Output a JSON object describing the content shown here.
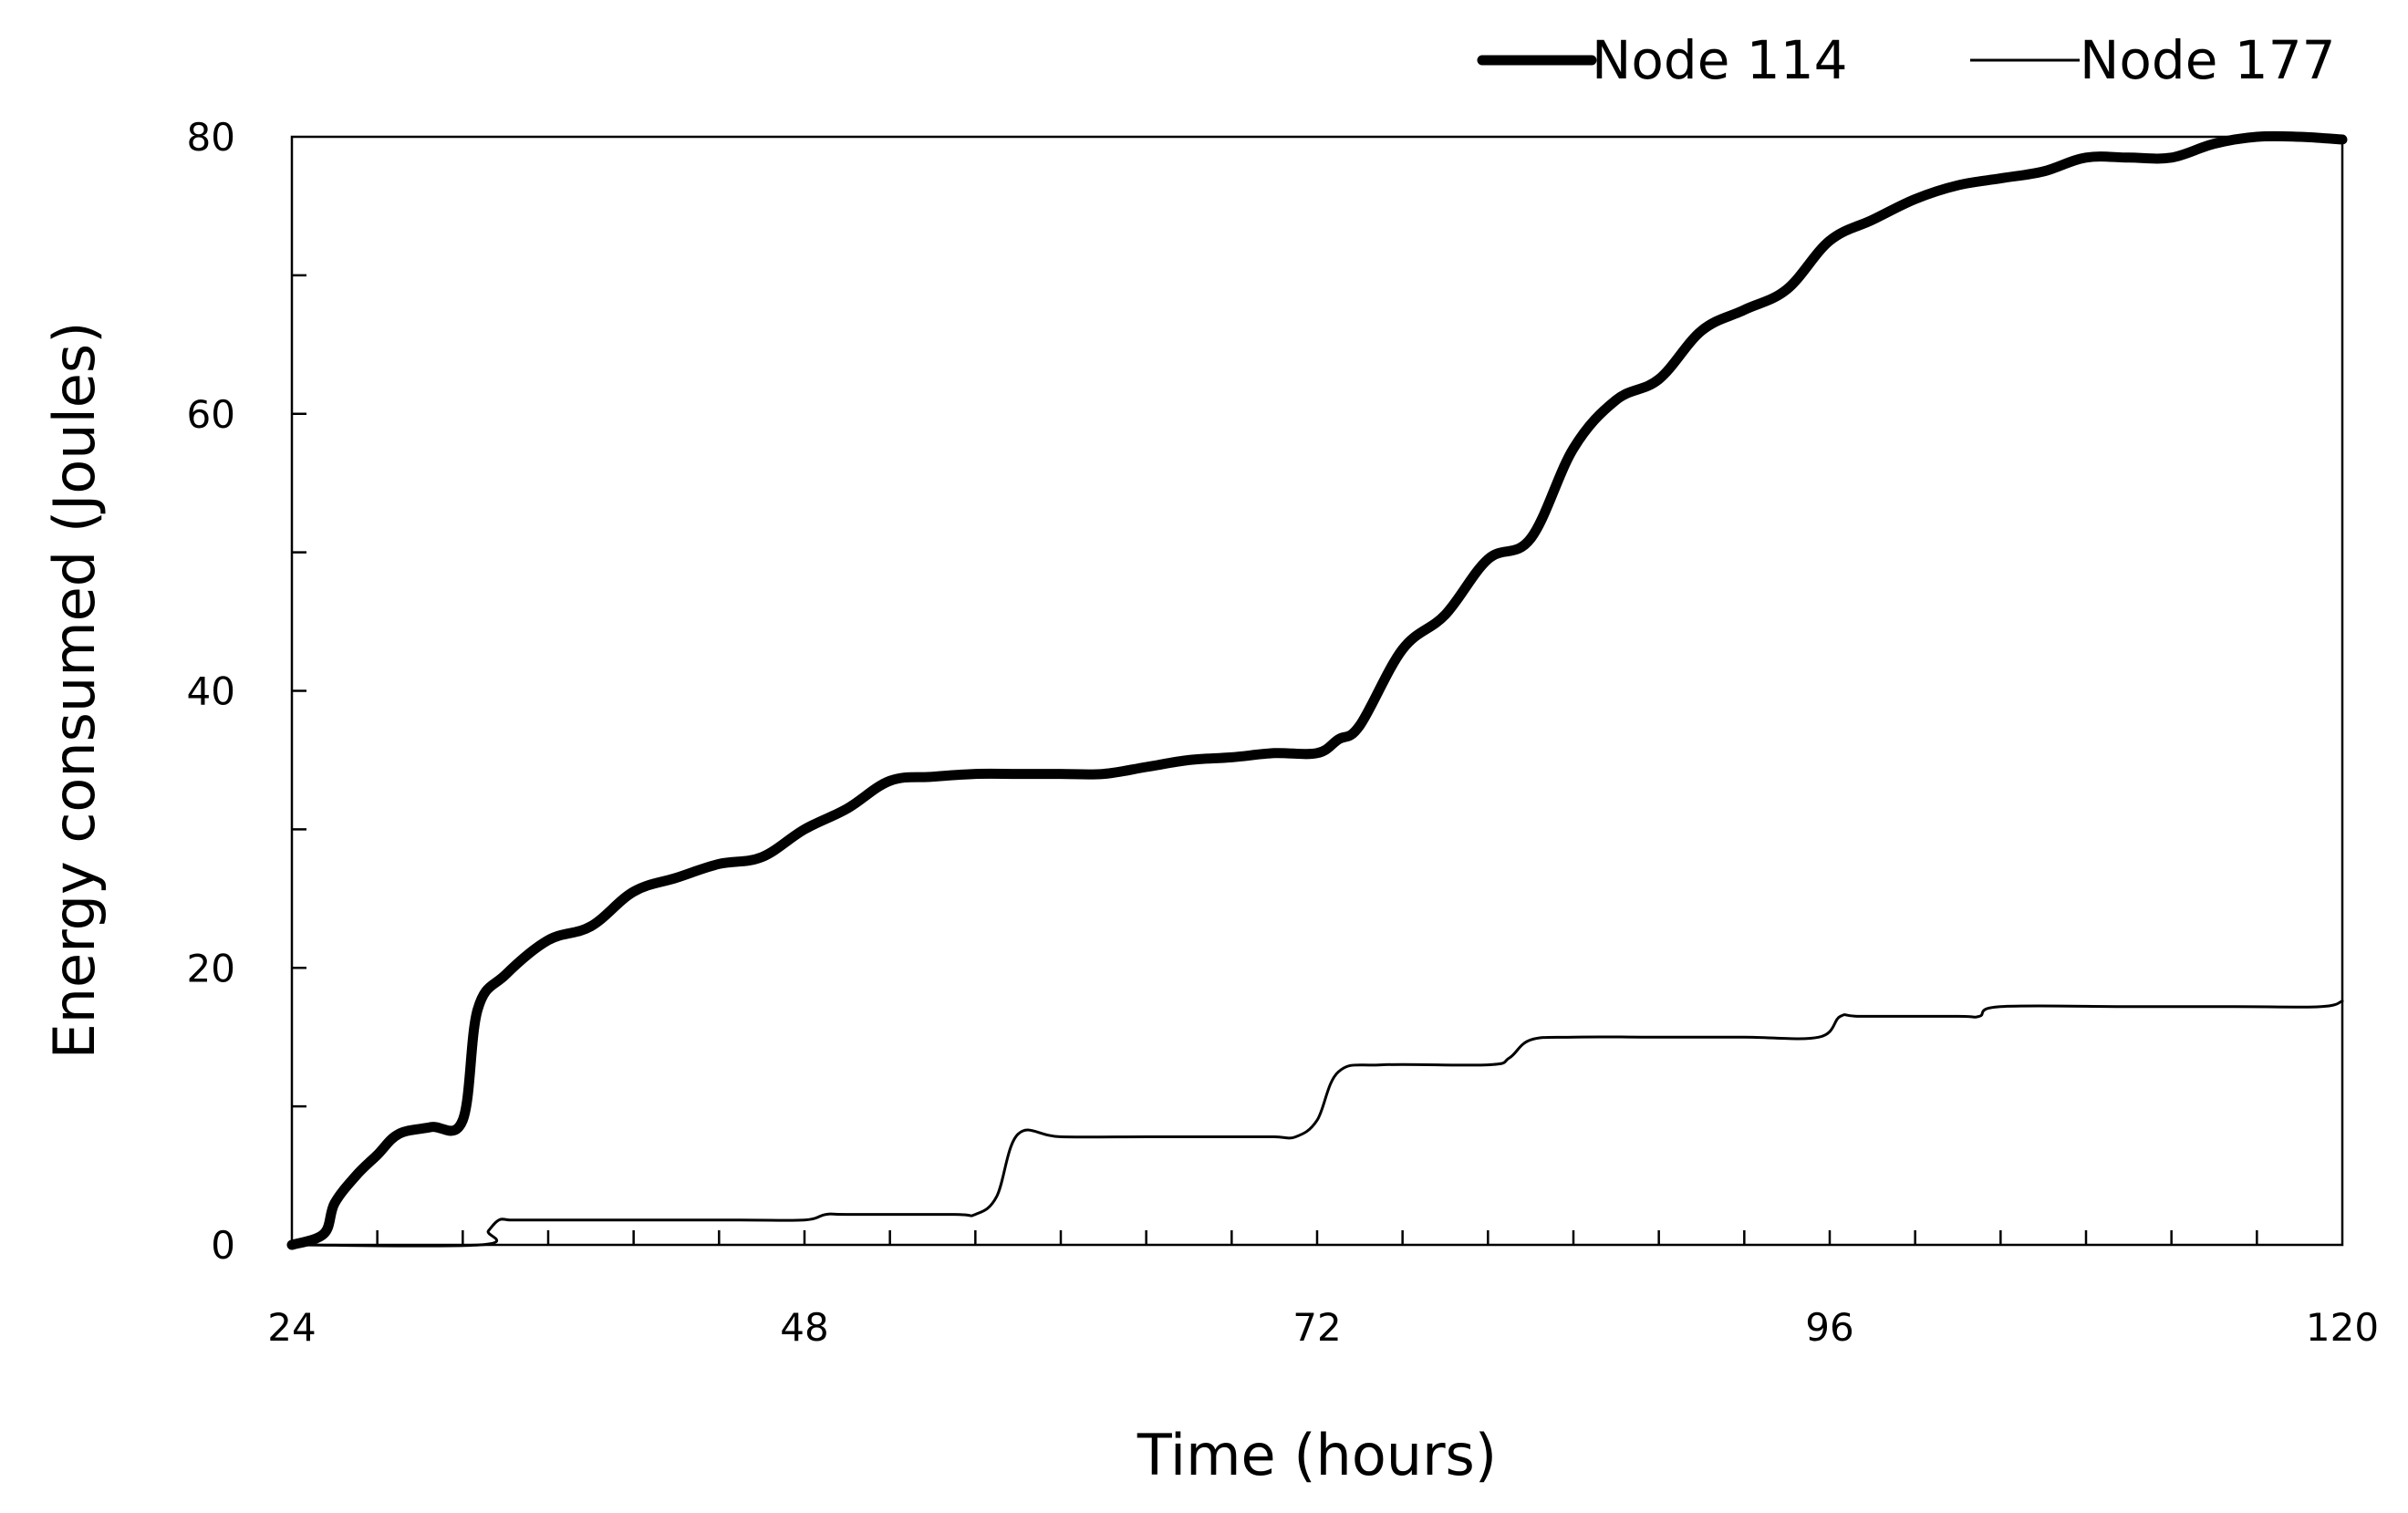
{
  "chart_data": {
    "type": "line",
    "title": "",
    "xlabel": "Time (hours)",
    "ylabel": "Energy consumed (Joules)",
    "xlim": [
      24,
      120
    ],
    "ylim": [
      0,
      80
    ],
    "x_ticks": [
      24,
      48,
      72,
      96,
      120
    ],
    "x_tick_labels": [
      "24",
      "48",
      "72",
      "96",
      "120"
    ],
    "y_ticks": [
      0,
      20,
      40,
      60,
      80
    ],
    "y_tick_labels": [
      "0",
      "20",
      "40",
      "60",
      "80"
    ],
    "grid": false,
    "legend": "top-right",
    "series": [
      {
        "name": "Node 114",
        "style": "thick",
        "color": "#000000",
        "x": [
          24,
          25.5,
          26,
          27,
          28,
          29,
          30.5,
          32,
          32.7,
          34,
          36,
          38,
          40,
          42,
          44,
          46,
          48,
          50,
          52,
          54,
          56,
          58,
          60,
          62,
          64,
          66,
          68,
          70,
          72,
          73,
          74,
          76,
          78,
          80,
          82,
          84,
          86,
          88,
          90,
          92,
          94,
          96,
          98,
          100,
          102,
          104,
          106,
          108,
          110,
          112,
          114,
          116,
          118,
          120
        ],
        "y": [
          0,
          0.8,
          3,
          5,
          6.5,
          8,
          8.5,
          9,
          17,
          19.5,
          22,
          23,
          25.5,
          26.5,
          27.5,
          28,
          30,
          31.5,
          33.5,
          33.8,
          34,
          34,
          34,
          34,
          34.5,
          35,
          35.2,
          35.5,
          35.5,
          36.5,
          37.5,
          43,
          45.5,
          49.5,
          51,
          57.5,
          61,
          62.5,
          66,
          67.5,
          69,
          72.5,
          74,
          75.5,
          76.5,
          77,
          77.5,
          78.5,
          78.5,
          78.5,
          79.5,
          80,
          80,
          79.8
        ]
      },
      {
        "name": "Node 177",
        "style": "thin",
        "color": "#000000",
        "x": [
          24,
          32.8,
          33.2,
          33.7,
          34.2,
          35,
          40,
          45,
          48,
          49,
          50,
          55,
          56,
          57,
          58,
          60,
          64,
          68,
          70,
          71,
          72,
          73,
          75,
          80,
          81,
          82,
          84,
          88,
          92,
          95.5,
          96.5,
          97.5,
          102,
          103,
          104,
          110,
          115,
          119,
          120
        ],
        "y": [
          0,
          0,
          1,
          1.8,
          1.8,
          1.8,
          1.8,
          1.8,
          1.8,
          2.2,
          2.2,
          2.2,
          2.2,
          3.5,
          8,
          7.8,
          7.8,
          7.8,
          7.8,
          7.8,
          9,
          12.5,
          13,
          13,
          13.5,
          14.8,
          15,
          15,
          15,
          15,
          16.5,
          16.5,
          16.5,
          16.5,
          17.2,
          17.2,
          17.2,
          17.2,
          17.6
        ]
      }
    ]
  }
}
